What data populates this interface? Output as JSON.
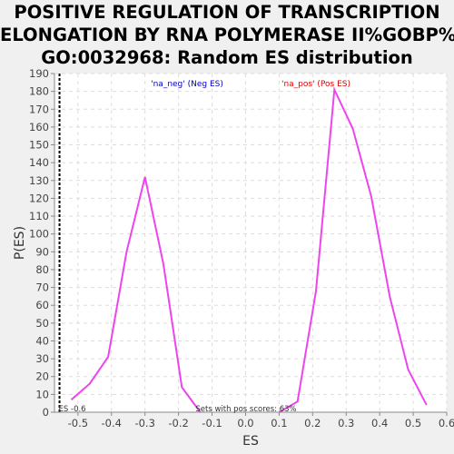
{
  "chart_data": {
    "type": "line",
    "title_lines": [
      "POSITIVE REGULATION OF TRANSCRIPTION",
      "ELONGATION BY RNA POLYMERASE II%GOBP%",
      "GO:0032968: Random ES distribution"
    ],
    "xlabel": "ES",
    "ylabel": "P(ES)",
    "xlim": [
      -0.57,
      0.6
    ],
    "ylim": [
      0,
      190
    ],
    "xticks": [
      -0.5,
      -0.4,
      -0.3,
      -0.2,
      -0.1,
      0.0,
      0.1,
      0.2,
      0.3,
      0.4,
      0.5,
      0.6
    ],
    "xtick_labels": [
      "-0.5",
      "-0.4",
      "-0.3",
      "-0.2",
      "-0.1",
      "0.0",
      "0.1",
      "0.2",
      "0.3",
      "0.4",
      "0.5",
      "0.6"
    ],
    "yticks": [
      0,
      10,
      20,
      30,
      40,
      50,
      60,
      70,
      80,
      90,
      100,
      110,
      120,
      130,
      140,
      150,
      160,
      170,
      180,
      190
    ],
    "grid": true,
    "series": [
      {
        "name": "'na_neg' (Neg ES)",
        "color": "#ee44ee",
        "x": [
          -0.52,
          -0.465,
          -0.41,
          -0.355,
          -0.3,
          -0.245,
          -0.19,
          -0.135
        ],
        "y": [
          7,
          16,
          31,
          90,
          132,
          83,
          14,
          0
        ]
      },
      {
        "name": "'na_pos' (Pos ES)",
        "color": "#ee44ee",
        "x": [
          0.1,
          0.155,
          0.21,
          0.265,
          0.32,
          0.375,
          0.43,
          0.485,
          0.54
        ],
        "y": [
          0,
          6,
          68,
          181,
          159,
          121,
          65,
          24,
          4
        ]
      }
    ],
    "legend": [
      {
        "label": "'na_neg' (Neg ES)",
        "color": "#0000cc"
      },
      {
        "label": "'na_pos' (Pos ES)",
        "color": "#dd0000"
      }
    ],
    "es_line": {
      "x": -0.555,
      "label": "ES -0.6"
    },
    "annotation": "Sets with pos scores: 63%",
    "colors": {
      "plot_bg": "#ffffff",
      "page_bg": "#f0f0f0",
      "curve": "#ee44ee",
      "grid": "#dddddd"
    }
  }
}
